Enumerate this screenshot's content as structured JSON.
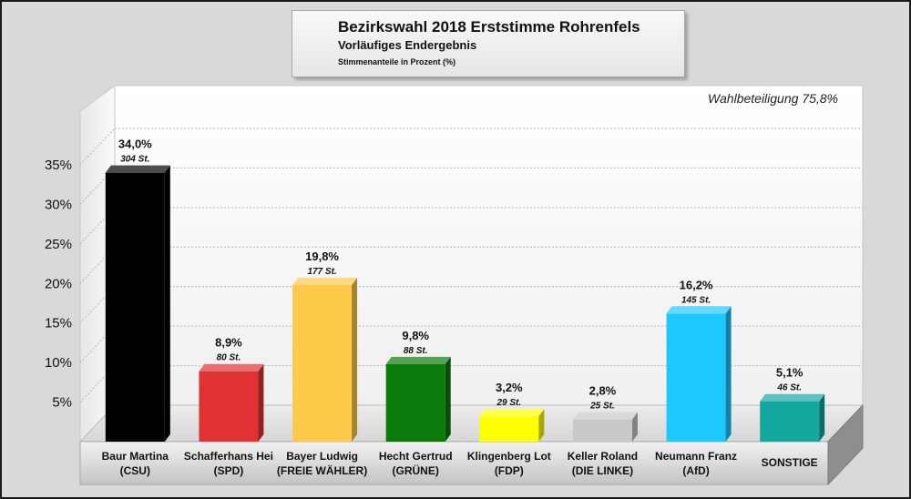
{
  "header": {
    "title": "Bezirkswahl 2018 Erststimme Rohrenfels",
    "subtitle": "Vorläufiges Endergebnis",
    "note": "Stimmenanteile in Prozent (%)"
  },
  "turnout_label": "Wahlbeteiligung 75,8%",
  "chart_data": {
    "type": "bar",
    "title": "Bezirkswahl 2018 Erststimme Rohrenfels",
    "subtitle": "Vorläufiges Endergebnis",
    "ylabel": "Stimmenanteile in Prozent (%)",
    "ylim": [
      0,
      40
    ],
    "yticks": [
      5,
      10,
      15,
      20,
      25,
      30,
      35
    ],
    "ytick_labels": [
      "5%",
      "10%",
      "15%",
      "20%",
      "25%",
      "30%",
      "35%"
    ],
    "grid": true,
    "categories": [
      {
        "name": "Baur Martina",
        "party": "(CSU)",
        "percent_label": "34,0%",
        "votes_label": "304 St.",
        "value": 34.0,
        "color": "#000000"
      },
      {
        "name": "Schafferhans Hei",
        "party": "(SPD)",
        "percent_label": "8,9%",
        "votes_label": "80 St.",
        "value": 8.9,
        "color": "#e03232"
      },
      {
        "name": "Bayer Ludwig",
        "party": "(FREIE WÄHLER)",
        "percent_label": "19,8%",
        "votes_label": "177 St.",
        "value": 19.8,
        "color": "#ffc94a"
      },
      {
        "name": "Hecht Gertrud",
        "party": "(GRÜNE)",
        "percent_label": "9,8%",
        "votes_label": "88 St.",
        "value": 9.8,
        "color": "#0a7a0a"
      },
      {
        "name": "Klingenberg Lot",
        "party": "(FDP)",
        "percent_label": "3,2%",
        "votes_label": "29 St.",
        "value": 3.2,
        "color": "#ffff00"
      },
      {
        "name": "Keller Roland",
        "party": "(DIE LINKE)",
        "percent_label": "2,8%",
        "votes_label": "25 St.",
        "value": 2.8,
        "color": "#c8c8c8"
      },
      {
        "name": "Neumann Franz",
        "party": "(AfD)",
        "percent_label": "16,2%",
        "votes_label": "145 St.",
        "value": 16.2,
        "color": "#1ec8ff"
      },
      {
        "name": "SONSTIGE",
        "party": "",
        "percent_label": "5,1%",
        "votes_label": "46 St.",
        "value": 5.1,
        "color": "#12a8a0"
      }
    ]
  }
}
